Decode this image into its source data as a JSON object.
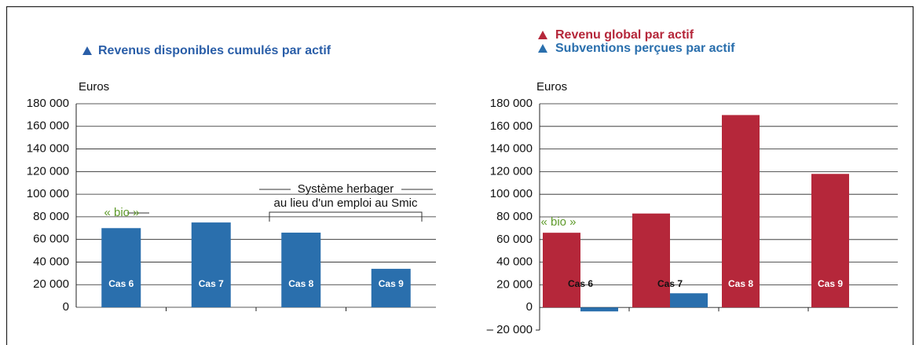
{
  "chart_data": [
    {
      "type": "bar",
      "title": "Revenus disponibles cumulés par actif",
      "y_label": "Euros",
      "categories": [
        "Cas 6",
        "Cas 7",
        "Cas 8",
        "Cas 9"
      ],
      "series": [
        {
          "name": "Revenus disponibles cumulés par actif",
          "color": "#2a6fad",
          "values": [
            70000,
            75000,
            66000,
            34000
          ]
        }
      ],
      "ylim": [
        0,
        180000
      ],
      "yticks": [
        0,
        {
          "value": 20000,
          "label": "20 000"
        },
        {
          "value": 40000,
          "label": "40 000"
        },
        {
          "value": 60000,
          "label": "60 000"
        },
        {
          "value": 80000,
          "label": "80 000"
        },
        {
          "value": 100000,
          "label": "100 000"
        },
        {
          "value": 120000,
          "label": "120 000"
        },
        {
          "value": 140000,
          "label": "140 000"
        },
        {
          "value": 160000,
          "label": "160 000"
        },
        {
          "value": 180000,
          "label": "180 000"
        }
      ],
      "grid": true,
      "annotations": [
        "« bio »",
        "Système herbager",
        "au lieu d'un emploi au Smic"
      ]
    },
    {
      "type": "bar",
      "y_label": "Euros",
      "categories": [
        "Cas 6",
        "Cas 7",
        "Cas 8",
        "Cas 9"
      ],
      "series": [
        {
          "name": "Revenu global par actif",
          "color": "#b5273a",
          "values": [
            66000,
            83000,
            170000,
            118000
          ]
        },
        {
          "name": "Subventions perçues par actif",
          "color": "#2a6fad",
          "values": [
            -3500,
            12500,
            null,
            null
          ]
        }
      ],
      "ylim": [
        -20000,
        180000
      ],
      "yticks": [
        {
          "value": -20000,
          "label": "– 20 000"
        },
        0,
        {
          "value": 20000,
          "label": "20 000"
        },
        {
          "value": 40000,
          "label": "40 000"
        },
        {
          "value": 60000,
          "label": "60 000"
        },
        {
          "value": 80000,
          "label": "80 000"
        },
        {
          "value": 100000,
          "label": "100 000"
        },
        {
          "value": 120000,
          "label": "120 000"
        },
        {
          "value": 140000,
          "label": "140 000"
        },
        {
          "value": 160000,
          "label": "160 000"
        },
        {
          "value": 180000,
          "label": "180 000"
        }
      ],
      "grid": true,
      "annotations": [
        "« bio »"
      ]
    }
  ]
}
